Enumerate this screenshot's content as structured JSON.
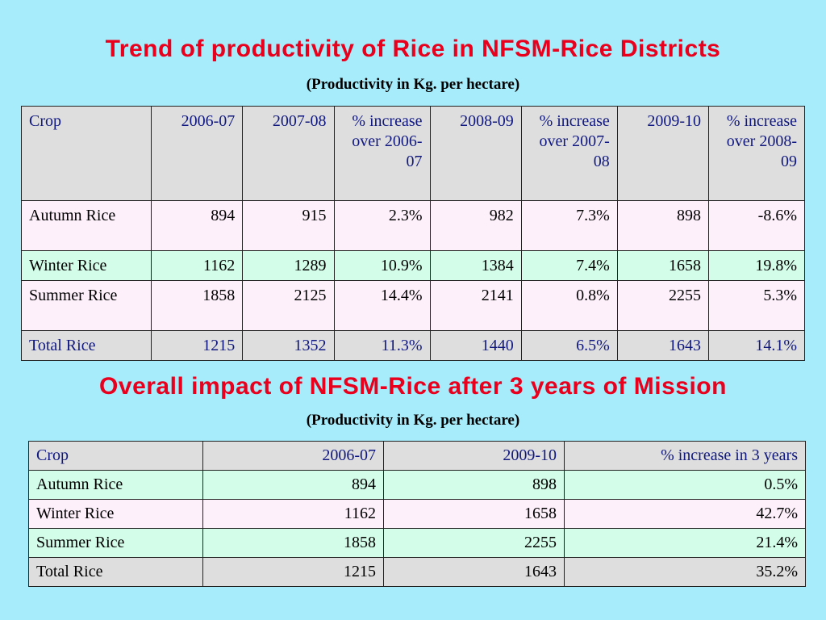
{
  "section1": {
    "title": "Trend of productivity of Rice in NFSM-Rice Districts",
    "subtitle": "(Productivity in Kg. per hectare)",
    "headers": [
      "Crop",
      "2006-07",
      "2007-08",
      "% increase over 2006-07",
      "2008-09",
      "% increase over 2007-08",
      "2009-10",
      "% increase over 2008-09"
    ],
    "rows": [
      [
        "Autumn Rice",
        "894",
        "915",
        "2.3%",
        "982",
        "7.3%",
        "898",
        "-8.6%"
      ],
      [
        "Winter Rice",
        "1162",
        "1289",
        "10.9%",
        "1384",
        "7.4%",
        "1658",
        "19.8%"
      ],
      [
        "Summer Rice",
        "1858",
        "2125",
        "14.4%",
        "2141",
        "0.8%",
        "2255",
        "5.3%"
      ],
      [
        "Total Rice",
        "1215",
        "1352",
        "11.3%",
        "1440",
        "6.5%",
        "1643",
        "14.1%"
      ]
    ]
  },
  "section2": {
    "title": "Overall impact of NFSM-Rice after 3 years of Mission",
    "subtitle": "(Productivity in Kg. per hectare)",
    "headers": [
      "Crop",
      "2006-07",
      "2009-10",
      "% increase in 3 years"
    ],
    "rows": [
      [
        "Autumn Rice",
        "894",
        "898",
        "0.5%"
      ],
      [
        "Winter Rice",
        "1162",
        "1658",
        "42.7%"
      ],
      [
        "Summer Rice",
        "1858",
        "2255",
        "21.4%"
      ],
      [
        "Total Rice",
        "1215",
        "1643",
        "35.2%"
      ]
    ]
  },
  "colors": {
    "background": "#a6ecfb",
    "title": "#e8001c",
    "header_text": "#101880",
    "header_bg": "#dedede",
    "row_pink": "#fdf0fb",
    "row_green": "#d3fde9"
  }
}
